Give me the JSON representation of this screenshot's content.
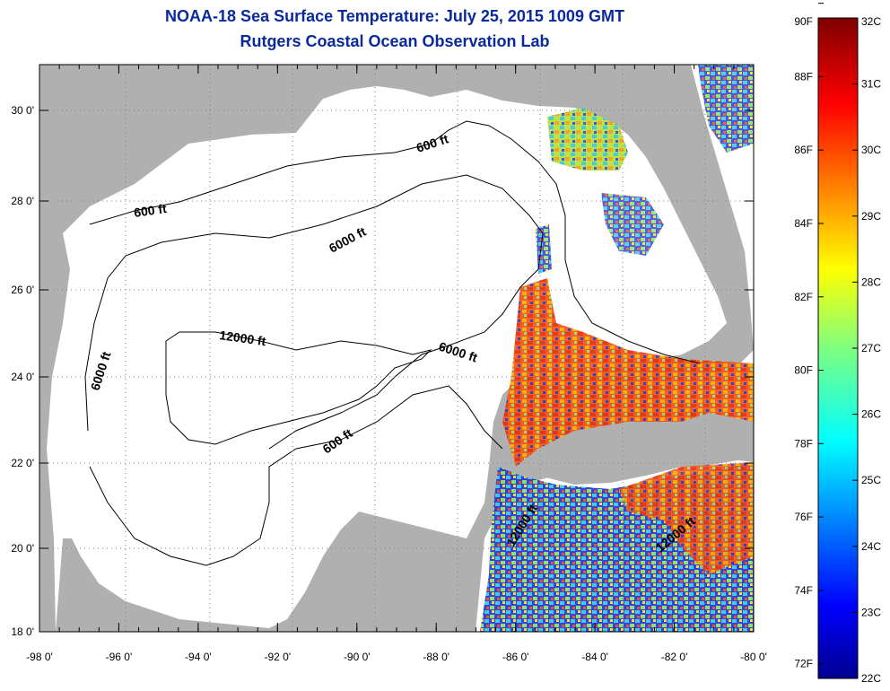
{
  "title": {
    "line1": "NOAA-18 Sea Surface Temperature:  July 25, 2015 1009 GMT",
    "line2": "Rutgers Coastal Ocean Observation Lab"
  },
  "map": {
    "lon_labels": [
      "-98 0'",
      "-96 0'",
      "-94 0'",
      "-92 0'",
      "-90 0'",
      "-88 0'",
      "-86 0'",
      "-84 0'",
      "-82 0'",
      "-80 0'"
    ],
    "lat_labels": [
      "30 0'",
      "28 0'",
      "26 0'",
      "24 0'",
      "22 0'",
      "20 0'",
      "18 0'"
    ],
    "contour_labels": [
      "600 ft",
      "600 ft",
      "6000 ft",
      "12000 ft",
      "6000 ft",
      "6000 ft",
      "600 ft",
      "12000 ft",
      "12000 ft"
    ],
    "colors": {
      "land": "#b0b0b0",
      "ocean_nodata": "#ffffff",
      "grid": "#808080"
    }
  },
  "colorbar": {
    "fahrenheit_labels": [
      "90F",
      "88F",
      "86F",
      "84F",
      "82F",
      "80F",
      "78F",
      "76F",
      "74F",
      "72F"
    ],
    "celsius_labels": [
      "32C",
      "31C",
      "30C",
      "29C",
      "28C",
      "27C",
      "26C",
      "25C",
      "24C",
      "23C",
      "22C"
    ],
    "range_celsius": [
      22,
      32
    ],
    "colormap": "jet"
  }
}
